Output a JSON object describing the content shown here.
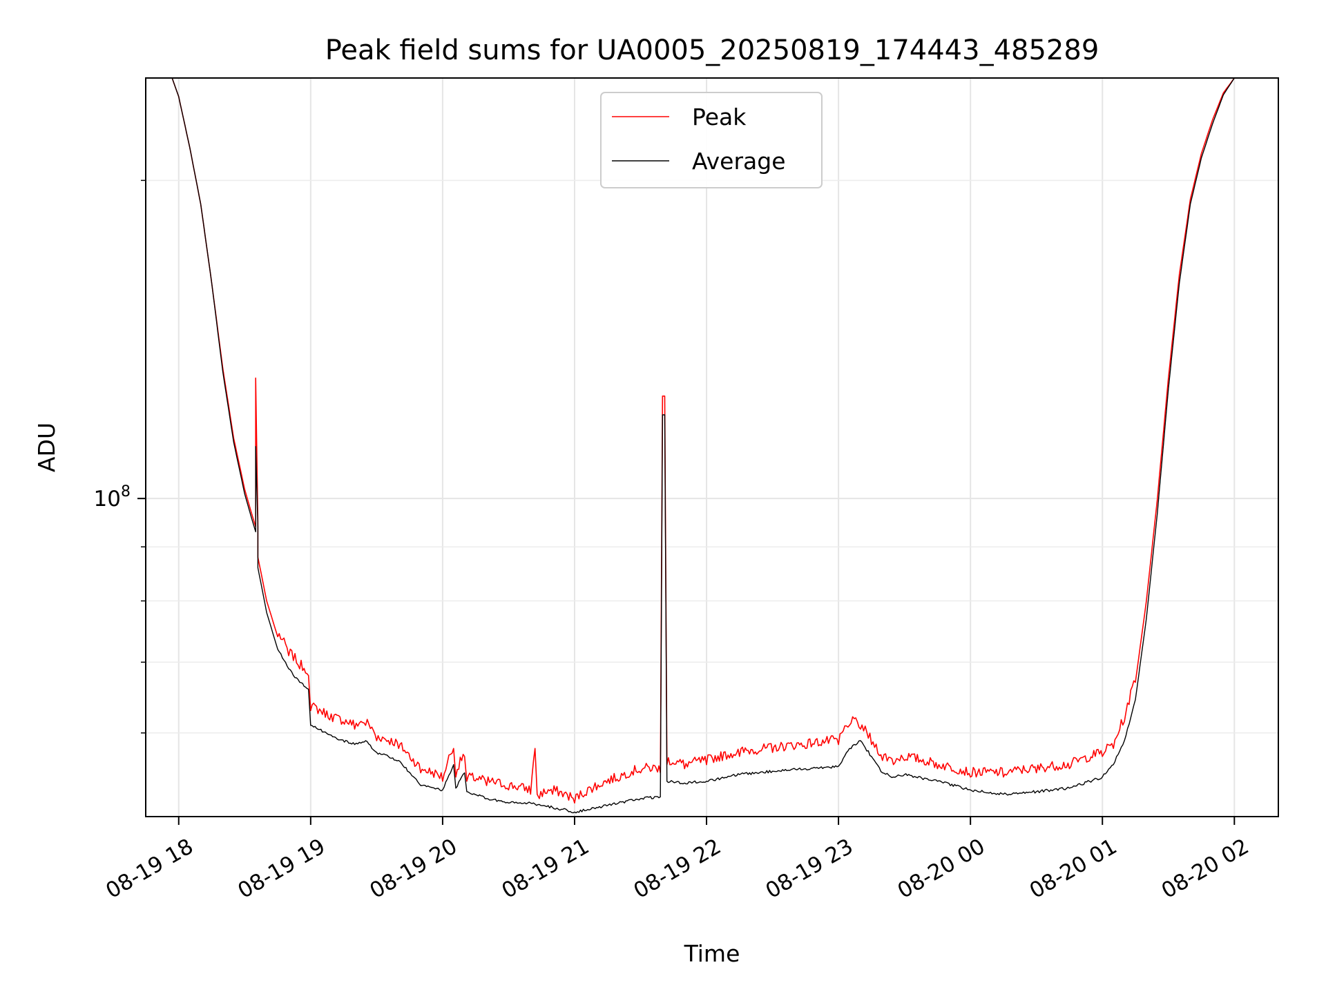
{
  "chart_data": {
    "type": "line",
    "title": "Peak field sums for UA0005_20250819_174443_485289",
    "xlabel": "Time",
    "ylabel": "ADU",
    "y_scale": "log",
    "ylim": [
      50000000,
      250000000
    ],
    "y_major_tick_label": {
      "base": "10",
      "exponent": "8"
    },
    "y_minor_ticks": [
      60000000,
      70000000,
      80000000,
      90000000,
      200000000
    ],
    "x_range": [
      "2025-08-19 17:45",
      "2025-08-20 02:20"
    ],
    "x_tick_labels": [
      "08-19 18",
      "08-19 19",
      "08-19 20",
      "08-19 21",
      "08-19 22",
      "08-19 23",
      "08-20 00",
      "08-20 01",
      "08-20 02"
    ],
    "x_ticks": [
      "2025-08-19 18:00",
      "2025-08-19 19:00",
      "2025-08-19 20:00",
      "2025-08-19 21:00",
      "2025-08-19 22:00",
      "2025-08-19 23:00",
      "2025-08-20 00:00",
      "2025-08-20 01:00",
      "2025-08-20 02:00"
    ],
    "grid": true,
    "legend_position": "upper-center",
    "series": [
      {
        "name": "Peak",
        "color": "#ff0000",
        "x": [
          "2025-08-19 17:57",
          "2025-08-19 18:00",
          "2025-08-19 18:05",
          "2025-08-19 18:10",
          "2025-08-19 18:15",
          "2025-08-19 18:20",
          "2025-08-19 18:25",
          "2025-08-19 18:30",
          "2025-08-19 18:33",
          "2025-08-19 18:35",
          "2025-08-19 18:35",
          "2025-08-19 18:36",
          "2025-08-19 18:36",
          "2025-08-19 18:40",
          "2025-08-19 18:45",
          "2025-08-19 18:50",
          "2025-08-19 18:55",
          "2025-08-19 18:59",
          "2025-08-19 19:00",
          "2025-08-19 19:10",
          "2025-08-19 19:20",
          "2025-08-19 19:25",
          "2025-08-19 19:30",
          "2025-08-19 19:40",
          "2025-08-19 19:50",
          "2025-08-19 20:00",
          "2025-08-19 20:05",
          "2025-08-19 20:06",
          "2025-08-19 20:10",
          "2025-08-19 20:11",
          "2025-08-19 20:20",
          "2025-08-19 20:30",
          "2025-08-19 20:40",
          "2025-08-19 20:42",
          "2025-08-19 20:43",
          "2025-08-19 20:44",
          "2025-08-19 20:50",
          "2025-08-19 21:00",
          "2025-08-19 21:10",
          "2025-08-19 21:20",
          "2025-08-19 21:30",
          "2025-08-19 21:39",
          "2025-08-19 21:40",
          "2025-08-19 21:41",
          "2025-08-19 21:42",
          "2025-08-19 21:50",
          "2025-08-19 22:00",
          "2025-08-19 22:15",
          "2025-08-19 22:30",
          "2025-08-19 22:45",
          "2025-08-19 23:00",
          "2025-08-19 23:05",
          "2025-08-19 23:10",
          "2025-08-19 23:15",
          "2025-08-19 23:20",
          "2025-08-19 23:25",
          "2025-08-19 23:30",
          "2025-08-19 23:45",
          "2025-08-20 00:00",
          "2025-08-20 00:15",
          "2025-08-20 00:30",
          "2025-08-20 00:45",
          "2025-08-20 01:00",
          "2025-08-20 01:05",
          "2025-08-20 01:10",
          "2025-08-20 01:15",
          "2025-08-20 01:20",
          "2025-08-20 01:25",
          "2025-08-20 01:30",
          "2025-08-20 01:35",
          "2025-08-20 01:40",
          "2025-08-20 01:45",
          "2025-08-20 01:50",
          "2025-08-20 01:55",
          "2025-08-20 02:00",
          "2025-08-20 02:05"
        ],
        "y": [
          250000000,
          240000000,
          215000000,
          190000000,
          160000000,
          133000000,
          114000000,
          102000000,
          97000000,
          94000000,
          130000000,
          95000000,
          88000000,
          80000000,
          74000000,
          71000000,
          69000000,
          68000000,
          63000000,
          61500000,
          60500000,
          61000000,
          59000000,
          58000000,
          55000000,
          54000000,
          58000000,
          54500000,
          57000000,
          54000000,
          53500000,
          53000000,
          52500000,
          58000000,
          52500000,
          52000000,
          52500000,
          51500000,
          53000000,
          54000000,
          55000000,
          55000000,
          125000000,
          125000000,
          56000000,
          55500000,
          56000000,
          57000000,
          57500000,
          58000000,
          58500000,
          61000000,
          60500000,
          58500000,
          56500000,
          56000000,
          56500000,
          55500000,
          54500000,
          54500000,
          55000000,
          55500000,
          57000000,
          58000000,
          61500000,
          67000000,
          80000000,
          100000000,
          130000000,
          163000000,
          192000000,
          212000000,
          228000000,
          242000000,
          250000000,
          250000000
        ]
      },
      {
        "name": "Average",
        "color": "#000000",
        "x": [
          "2025-08-19 17:57",
          "2025-08-19 18:00",
          "2025-08-19 18:05",
          "2025-08-19 18:10",
          "2025-08-19 18:15",
          "2025-08-19 18:20",
          "2025-08-19 18:25",
          "2025-08-19 18:30",
          "2025-08-19 18:33",
          "2025-08-19 18:35",
          "2025-08-19 18:35",
          "2025-08-19 18:36",
          "2025-08-19 18:36",
          "2025-08-19 18:40",
          "2025-08-19 18:45",
          "2025-08-19 18:50",
          "2025-08-19 18:55",
          "2025-08-19 18:59",
          "2025-08-19 19:00",
          "2025-08-19 19:10",
          "2025-08-19 19:20",
          "2025-08-19 19:25",
          "2025-08-19 19:30",
          "2025-08-19 19:40",
          "2025-08-19 19:50",
          "2025-08-19 20:00",
          "2025-08-19 20:05",
          "2025-08-19 20:06",
          "2025-08-19 20:10",
          "2025-08-19 20:11",
          "2025-08-19 20:20",
          "2025-08-19 20:30",
          "2025-08-19 20:40",
          "2025-08-19 20:50",
          "2025-08-19 21:00",
          "2025-08-19 21:10",
          "2025-08-19 21:20",
          "2025-08-19 21:30",
          "2025-08-19 21:39",
          "2025-08-19 21:40",
          "2025-08-19 21:41",
          "2025-08-19 21:42",
          "2025-08-19 21:50",
          "2025-08-19 22:00",
          "2025-08-19 22:15",
          "2025-08-19 22:30",
          "2025-08-19 22:45",
          "2025-08-19 23:00",
          "2025-08-19 23:05",
          "2025-08-19 23:10",
          "2025-08-19 23:15",
          "2025-08-19 23:20",
          "2025-08-19 23:25",
          "2025-08-19 23:30",
          "2025-08-19 23:45",
          "2025-08-20 00:00",
          "2025-08-20 00:15",
          "2025-08-20 00:30",
          "2025-08-20 00:45",
          "2025-08-20 01:00",
          "2025-08-20 01:05",
          "2025-08-20 01:10",
          "2025-08-20 01:15",
          "2025-08-20 01:20",
          "2025-08-20 01:25",
          "2025-08-20 01:30",
          "2025-08-20 01:35",
          "2025-08-20 01:40",
          "2025-08-20 01:45",
          "2025-08-20 01:50",
          "2025-08-20 01:55",
          "2025-08-20 02:00",
          "2025-08-20 02:05"
        ],
        "y": [
          250000000,
          240000000,
          215000000,
          190000000,
          160000000,
          132000000,
          113000000,
          101000000,
          96000000,
          93000000,
          112000000,
          94000000,
          86000000,
          78000000,
          72000000,
          69000000,
          67000000,
          66000000,
          61000000,
          59500000,
          58500000,
          59000000,
          57500000,
          56500000,
          53500000,
          53000000,
          56000000,
          53200000,
          55000000,
          52800000,
          52000000,
          51500000,
          51500000,
          51000000,
          50500000,
          51000000,
          51500000,
          52000000,
          52200000,
          120000000,
          120000000,
          54000000,
          53800000,
          54000000,
          54800000,
          55200000,
          55500000,
          55800000,
          58000000,
          59000000,
          57000000,
          55000000,
          54500000,
          54800000,
          54000000,
          53000000,
          52500000,
          52800000,
          53200000,
          54500000,
          56000000,
          59000000,
          64500000,
          77000000,
          97000000,
          127000000,
          160000000,
          190000000,
          210000000,
          226000000,
          241000000,
          250000000,
          250000000
        ]
      }
    ]
  }
}
